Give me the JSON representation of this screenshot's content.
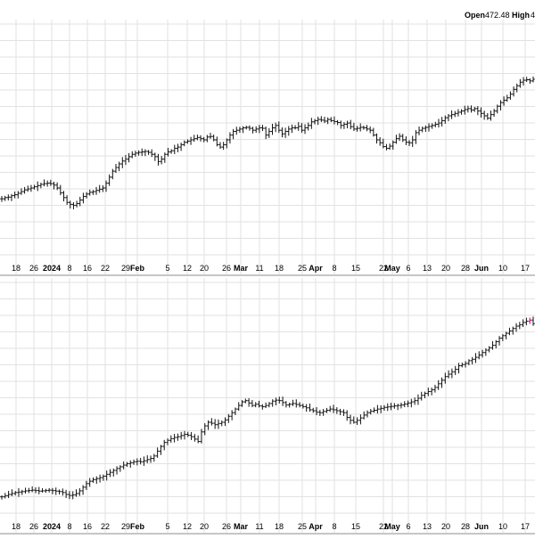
{
  "header": {
    "open_label": "Open",
    "open_value": "472.48",
    "high_label": "High",
    "high_value": "4"
  },
  "chart_data": [
    {
      "type": "ohlc",
      "panel": "top",
      "x_tick_labels": [
        "18",
        "26",
        "2024",
        "8",
        "16",
        "22",
        "29",
        "Feb",
        "5",
        "12",
        "20",
        "26",
        "Mar",
        "11",
        "18",
        "25",
        "Apr",
        "8",
        "15",
        "22",
        "May",
        "6",
        "13",
        "20",
        "28",
        "Jun",
        "10",
        "17"
      ],
      "month_labels": [
        "2024",
        "Feb",
        "Mar",
        "Apr",
        "May",
        "Jun"
      ],
      "grid": true,
      "y_tick_labels_visible": false,
      "close_path": [
        0.255,
        0.26,
        0.262,
        0.268,
        0.272,
        0.278,
        0.285,
        0.292,
        0.296,
        0.3,
        0.305,
        0.31,
        0.315,
        0.318,
        0.32,
        0.318,
        0.312,
        0.3,
        0.28,
        0.26,
        0.24,
        0.232,
        0.228,
        0.235,
        0.25,
        0.265,
        0.275,
        0.282,
        0.285,
        0.29,
        0.295,
        0.3,
        0.32,
        0.345,
        0.37,
        0.385,
        0.4,
        0.412,
        0.42,
        0.43,
        0.44,
        0.445,
        0.448,
        0.45,
        0.452,
        0.448,
        0.44,
        0.43,
        0.41,
        0.42,
        0.44,
        0.45,
        0.455,
        0.465,
        0.47,
        0.48,
        0.49,
        0.495,
        0.5,
        0.505,
        0.51,
        0.505,
        0.5,
        0.512,
        0.514,
        0.5,
        0.48,
        0.47,
        0.48,
        0.5,
        0.52,
        0.535,
        0.54,
        0.545,
        0.55,
        0.552,
        0.548,
        0.54,
        0.545,
        0.55,
        0.548,
        0.52,
        0.535,
        0.55,
        0.56,
        0.54,
        0.525,
        0.535,
        0.545,
        0.55,
        0.55,
        0.556,
        0.54,
        0.55,
        0.56,
        0.575,
        0.58,
        0.585,
        0.582,
        0.578,
        0.585,
        0.58,
        0.576,
        0.572,
        0.56,
        0.565,
        0.57,
        0.555,
        0.545,
        0.548,
        0.552,
        0.55,
        0.545,
        0.54,
        0.52,
        0.5,
        0.488,
        0.472,
        0.465,
        0.474,
        0.49,
        0.505,
        0.515,
        0.5,
        0.49,
        0.488,
        0.5,
        0.53,
        0.54,
        0.548,
        0.552,
        0.556,
        0.56,
        0.565,
        0.57,
        0.58,
        0.592,
        0.6,
        0.605,
        0.61,
        0.615,
        0.62,
        0.626,
        0.63,
        0.624,
        0.63,
        0.62,
        0.61,
        0.6,
        0.59,
        0.605,
        0.62,
        0.64,
        0.655,
        0.665,
        0.675,
        0.69,
        0.71,
        0.725,
        0.74,
        0.748,
        0.75,
        0.745,
        0.752
      ]
    },
    {
      "type": "ohlc",
      "panel": "bottom",
      "x_tick_labels": [
        "18",
        "26",
        "2024",
        "8",
        "16",
        "22",
        "29",
        "Feb",
        "5",
        "12",
        "20",
        "26",
        "Mar",
        "11",
        "18",
        "25",
        "Apr",
        "8",
        "15",
        "22",
        "May",
        "6",
        "13",
        "20",
        "28",
        "Jun",
        "10",
        "17"
      ],
      "month_labels": [
        "2024",
        "Feb",
        "Mar",
        "Apr",
        "May",
        "Jun"
      ],
      "grid": true,
      "y_tick_labels_visible": false,
      "close_path": [
        0.09,
        0.095,
        0.1,
        0.104,
        0.108,
        0.11,
        0.112,
        0.115,
        0.116,
        0.118,
        0.116,
        0.114,
        0.115,
        0.117,
        0.118,
        0.116,
        0.114,
        0.112,
        0.108,
        0.1,
        0.096,
        0.098,
        0.104,
        0.115,
        0.13,
        0.145,
        0.155,
        0.162,
        0.166,
        0.17,
        0.176,
        0.184,
        0.192,
        0.2,
        0.208,
        0.215,
        0.222,
        0.228,
        0.232,
        0.236,
        0.238,
        0.236,
        0.24,
        0.245,
        0.25,
        0.26,
        0.28,
        0.3,
        0.316,
        0.325,
        0.332,
        0.337,
        0.34,
        0.345,
        0.35,
        0.346,
        0.34,
        0.33,
        0.32,
        0.36,
        0.385,
        0.4,
        0.396,
        0.39,
        0.395,
        0.4,
        0.41,
        0.425,
        0.44,
        0.455,
        0.47,
        0.485,
        0.49,
        0.48,
        0.47,
        0.475,
        0.468,
        0.465,
        0.47,
        0.478,
        0.488,
        0.492,
        0.49,
        0.482,
        0.472,
        0.475,
        0.478,
        0.474,
        0.47,
        0.465,
        0.46,
        0.452,
        0.448,
        0.442,
        0.44,
        0.445,
        0.45,
        0.455,
        0.452,
        0.448,
        0.444,
        0.44,
        0.42,
        0.408,
        0.4,
        0.408,
        0.418,
        0.43,
        0.44,
        0.446,
        0.45,
        0.455,
        0.458,
        0.462,
        0.464,
        0.466,
        0.468,
        0.47,
        0.472,
        0.476,
        0.48,
        0.485,
        0.49,
        0.5,
        0.512,
        0.52,
        0.528,
        0.535,
        0.545,
        0.56,
        0.575,
        0.59,
        0.6,
        0.61,
        0.62,
        0.635,
        0.64,
        0.645,
        0.656,
        0.662,
        0.67,
        0.68,
        0.69,
        0.7,
        0.71,
        0.72,
        0.735,
        0.75,
        0.76,
        0.77,
        0.78,
        0.79,
        0.8,
        0.805,
        0.815,
        0.82,
        0.825,
        0.81
      ]
    }
  ]
}
